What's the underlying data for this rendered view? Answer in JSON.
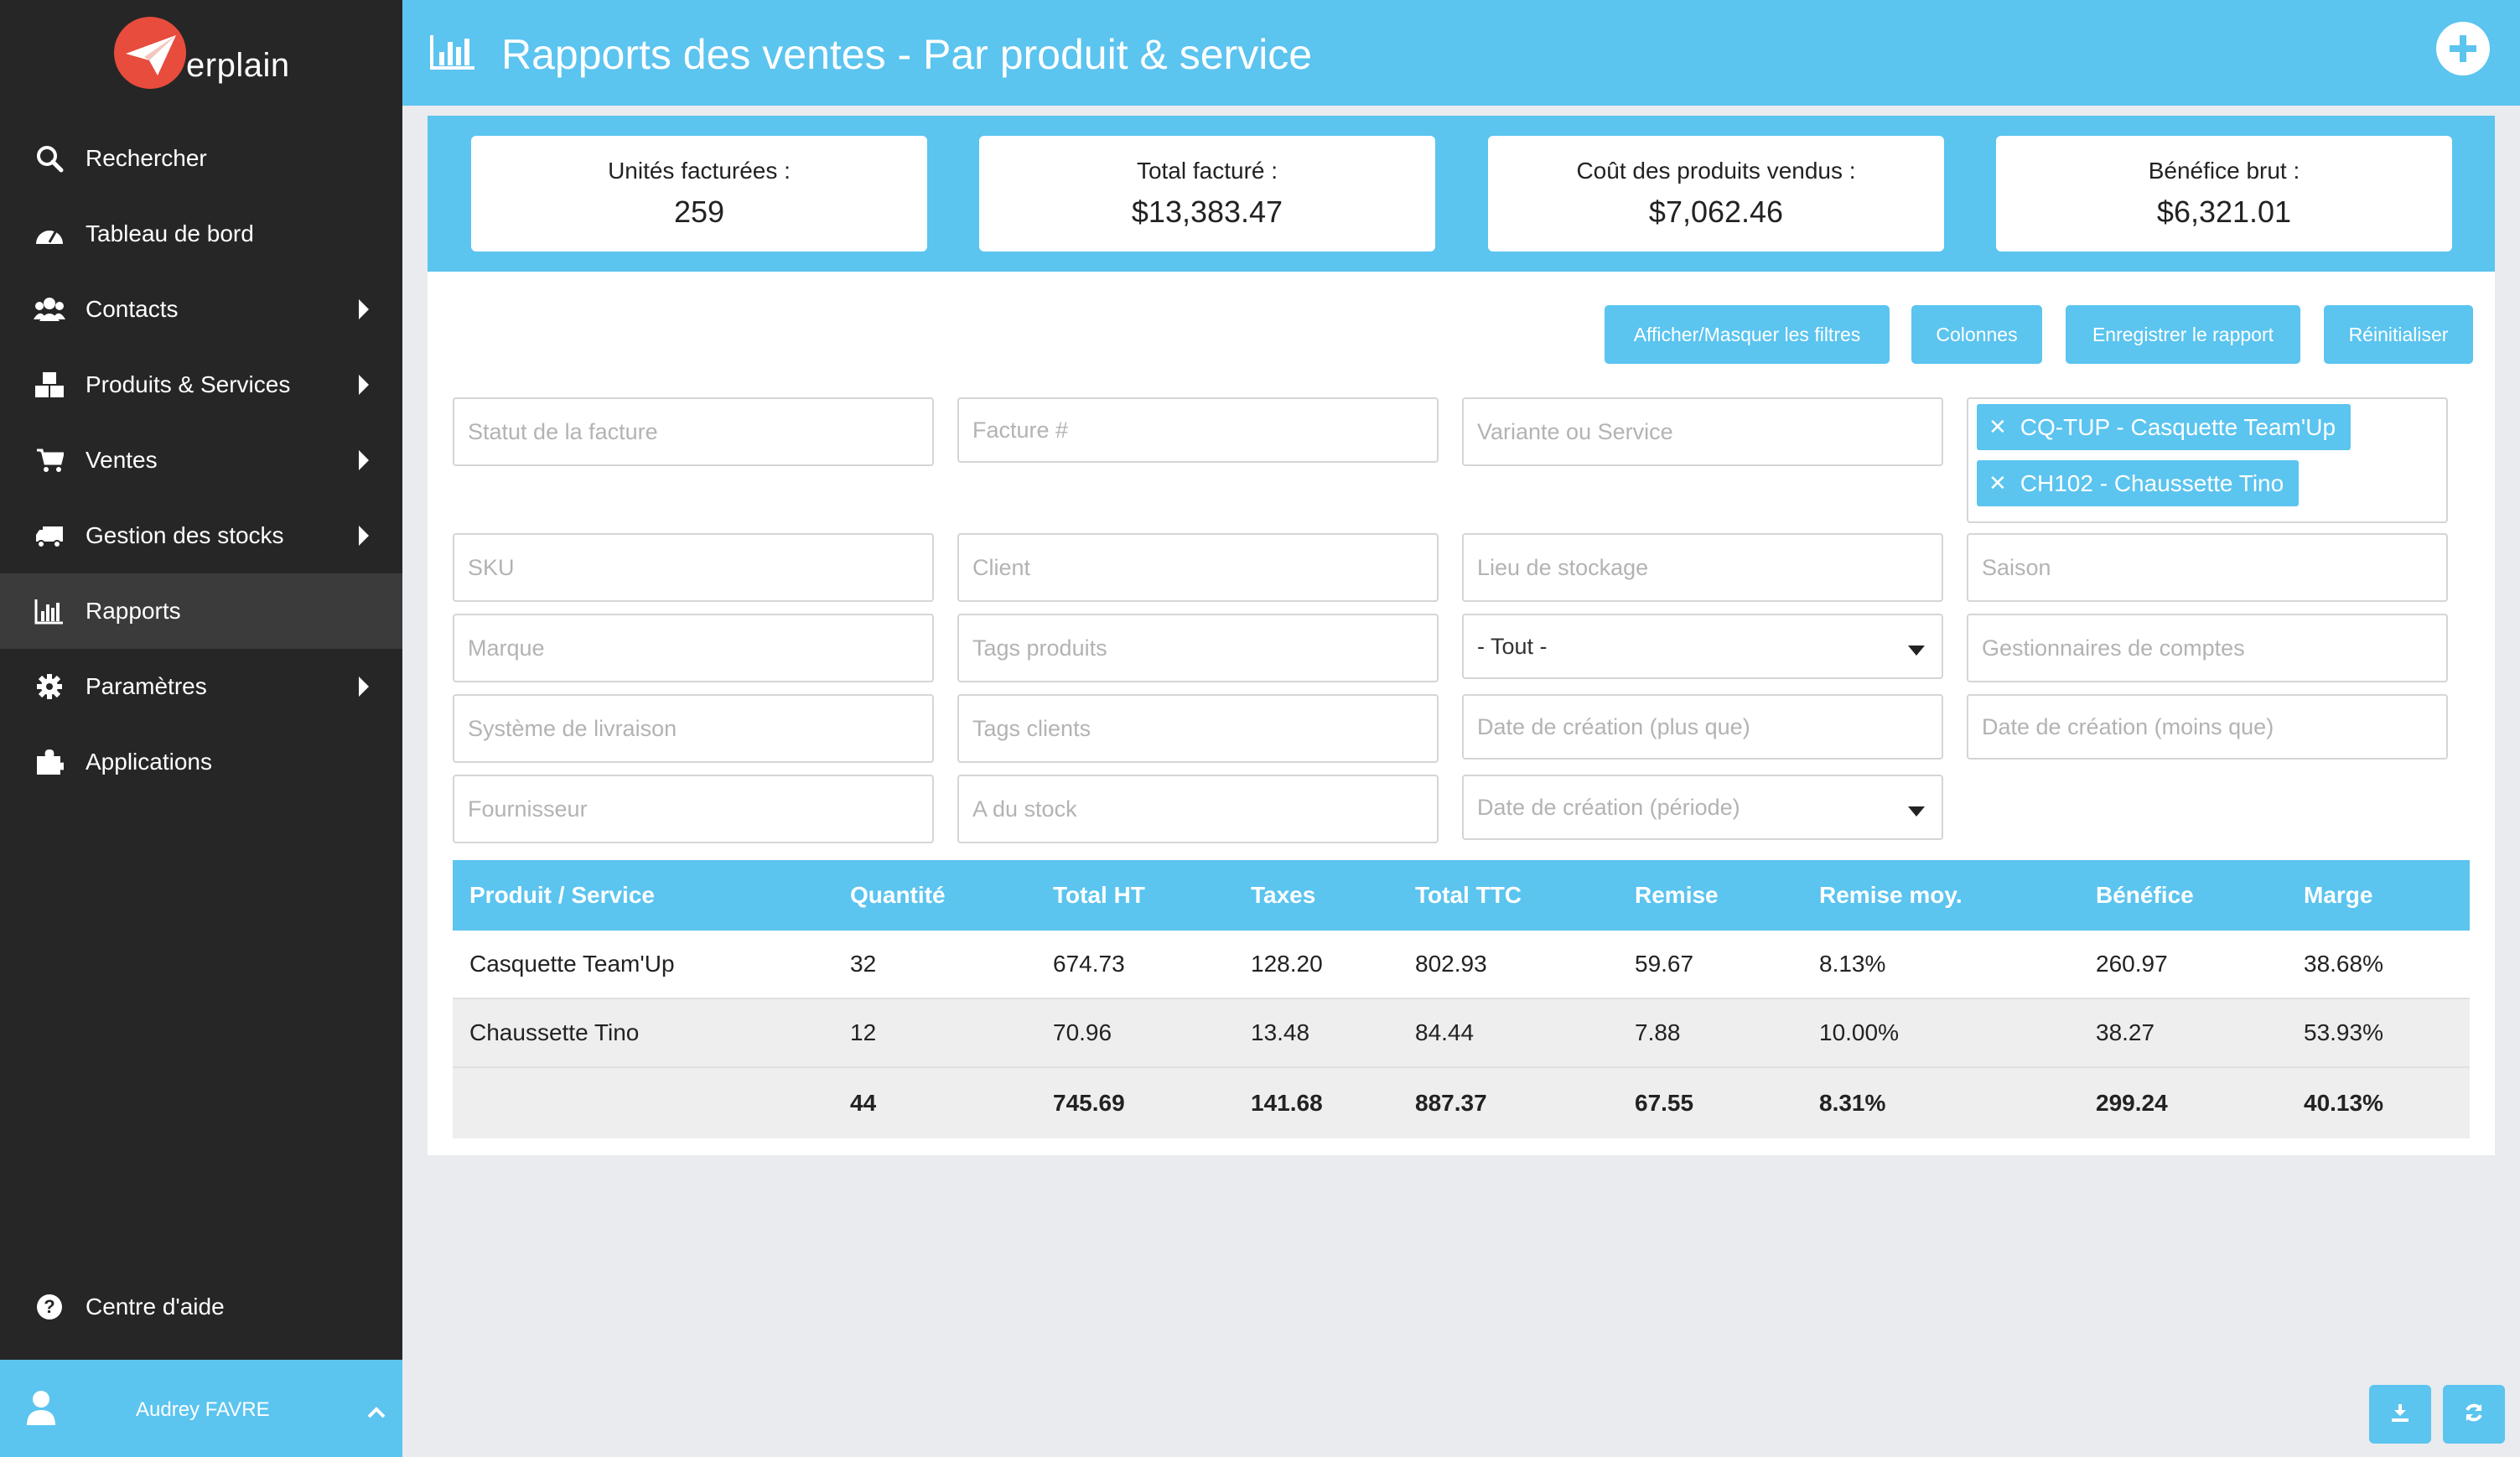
{
  "app": {
    "logo_text": "erplain",
    "brand_color": "#5bc4ef",
    "logo_color": "#e84c3d"
  },
  "sidebar": {
    "items": [
      {
        "label": "Rechercher",
        "icon": "search-icon",
        "arrow": false
      },
      {
        "label": "Tableau de bord",
        "icon": "dashboard-icon",
        "arrow": false
      },
      {
        "label": "Contacts",
        "icon": "users-icon",
        "arrow": true
      },
      {
        "label": "Produits & Services",
        "icon": "cubes-icon",
        "arrow": true
      },
      {
        "label": "Ventes",
        "icon": "cart-icon",
        "arrow": true
      },
      {
        "label": "Gestion des stocks",
        "icon": "truck-icon",
        "arrow": true
      },
      {
        "label": "Rapports",
        "icon": "bar-chart-icon",
        "arrow": false,
        "active": true
      },
      {
        "label": "Paramètres",
        "icon": "gear-icon",
        "arrow": true
      },
      {
        "label": "Applications",
        "icon": "puzzle-icon",
        "arrow": false
      }
    ],
    "help_label": "Centre d'aide",
    "user_name": "Audrey FAVRE"
  },
  "header": {
    "title": "Rapports des ventes - Par produit & service"
  },
  "stats": [
    {
      "label": "Unités facturées :",
      "value": "259"
    },
    {
      "label": "Total facturé :",
      "value": "$13,383.47"
    },
    {
      "label": "Coût des produits vendus :",
      "value": "$7,062.46"
    },
    {
      "label": "Bénéfice brut :",
      "value": "$6,321.01"
    }
  ],
  "toolbar": {
    "toggle_filters": "Afficher/Masquer les filtres",
    "columns": "Colonnes",
    "save_report": "Enregistrer le rapport",
    "reset": "Réinitialiser"
  },
  "filters": {
    "invoice_status": "Statut de la facture",
    "invoice_number": "Facture #",
    "variant_service": "Variante ou Service",
    "sku": "SKU",
    "client": "Client",
    "storage_location": "Lieu de stockage",
    "season": "Saison",
    "brand": "Marque",
    "product_tags": "Tags produits",
    "all_select": "- Tout -",
    "account_managers": "Gestionnaires de comptes",
    "delivery_system": "Système de livraison",
    "client_tags": "Tags clients",
    "created_after": "Date de création (plus que)",
    "created_before": "Date de création (moins que)",
    "supplier": "Fournisseur",
    "in_stock": "A du stock",
    "created_period": "Date de création (période)",
    "selected_products": [
      "CQ-TUP - Casquette Team'Up",
      "CH102 - Chaussette Tino"
    ]
  },
  "table": {
    "headers": [
      "Produit / Service",
      "Quantité",
      "Total HT",
      "Taxes",
      "Total TTC",
      "Remise",
      "Remise moy.",
      "Bénéfice",
      "Marge"
    ],
    "rows": [
      [
        "Casquette Team'Up",
        "32",
        "674.73",
        "128.20",
        "802.93",
        "59.67",
        "8.13%",
        "260.97",
        "38.68%"
      ],
      [
        "Chaussette Tino",
        "12",
        "70.96",
        "13.48",
        "84.44",
        "7.88",
        "10.00%",
        "38.27",
        "53.93%"
      ]
    ],
    "totals": [
      "",
      "44",
      "745.69",
      "141.68",
      "887.37",
      "67.55",
      "8.31%",
      "299.24",
      "40.13%"
    ]
  }
}
